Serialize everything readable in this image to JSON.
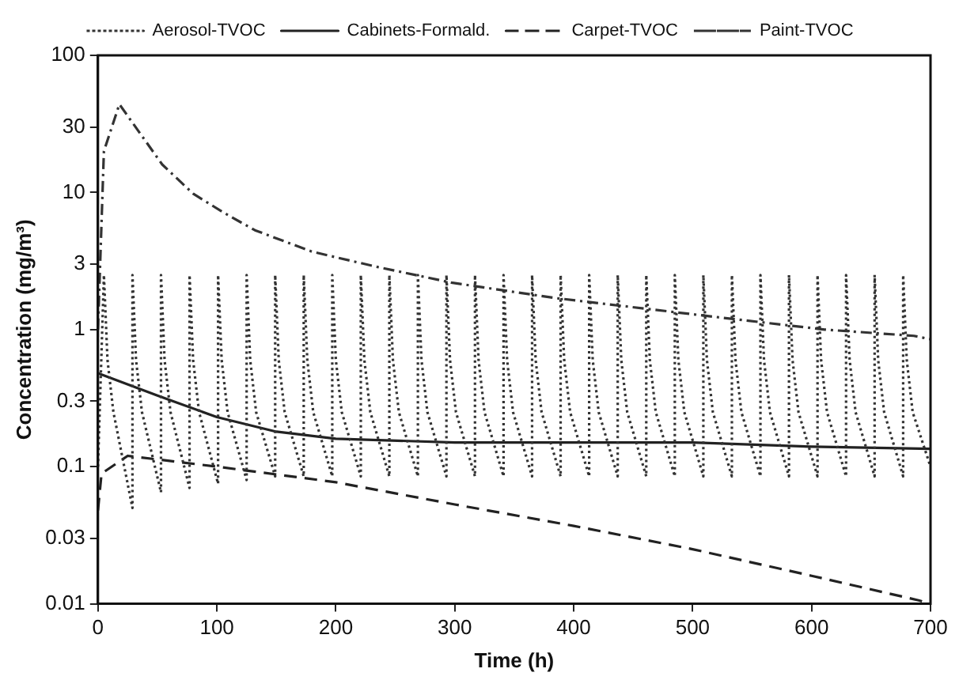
{
  "chart_data": {
    "type": "line",
    "xlabel": "Time (h)",
    "ylabel": "Concentration (mg/m³)",
    "log": "y",
    "xlim": [
      0,
      700
    ],
    "xticks": [
      0,
      100,
      200,
      300,
      400,
      500,
      600,
      700
    ],
    "ylim": [
      0.01,
      100
    ],
    "yticks": [
      0.01,
      0.03,
      0.1,
      0.3,
      1,
      3,
      10,
      30,
      100
    ],
    "grid": false,
    "legend": "top",
    "marker": "none",
    "series": [
      {
        "name": "Aerosol-TVOC",
        "color": "#333333",
        "line_style": "dotted",
        "x": [
          0,
          5,
          8,
          13,
          29,
          29,
          32,
          37,
          53,
          53,
          56,
          61,
          77,
          77,
          80,
          85,
          101,
          101,
          104,
          109,
          125,
          125,
          128,
          133,
          149,
          149,
          152,
          157,
          173,
          173,
          176,
          181,
          197,
          197,
          200,
          205,
          221,
          221,
          224,
          229,
          245,
          245,
          248,
          253,
          269,
          269,
          272,
          277,
          293,
          293,
          296,
          301,
          317,
          317,
          320,
          325,
          341,
          341,
          344,
          349,
          365,
          365,
          368,
          373,
          389,
          389,
          392,
          397,
          413,
          413,
          416,
          421,
          437,
          437,
          440,
          445,
          461,
          461,
          464,
          469,
          485,
          485,
          488,
          493,
          509,
          509,
          512,
          517,
          533,
          533,
          536,
          541,
          557,
          557,
          560,
          565,
          581,
          581,
          584,
          589,
          605,
          605,
          608,
          613,
          629,
          629,
          632,
          637,
          653,
          653,
          656,
          661,
          677,
          677,
          680,
          685,
          700
        ],
        "values": [
          0.1,
          2.5,
          0.6,
          0.25,
          0.05,
          2.5,
          0.6,
          0.25,
          0.065,
          2.5,
          0.6,
          0.25,
          0.07,
          2.5,
          0.6,
          0.25,
          0.075,
          2.5,
          0.6,
          0.25,
          0.08,
          2.5,
          0.6,
          0.25,
          0.085,
          2.5,
          0.6,
          0.25,
          0.085,
          2.5,
          0.6,
          0.25,
          0.085,
          2.5,
          0.6,
          0.25,
          0.085,
          2.5,
          0.6,
          0.25,
          0.085,
          2.5,
          0.6,
          0.25,
          0.085,
          2.5,
          0.6,
          0.25,
          0.085,
          2.5,
          0.6,
          0.25,
          0.085,
          2.5,
          0.6,
          0.25,
          0.085,
          2.5,
          0.6,
          0.25,
          0.085,
          2.5,
          0.6,
          0.25,
          0.085,
          2.5,
          0.6,
          0.25,
          0.085,
          2.5,
          0.6,
          0.25,
          0.085,
          2.5,
          0.6,
          0.25,
          0.085,
          2.5,
          0.6,
          0.25,
          0.085,
          2.5,
          0.6,
          0.25,
          0.085,
          2.5,
          0.6,
          0.25,
          0.085,
          2.5,
          0.6,
          0.25,
          0.085,
          2.5,
          0.6,
          0.25,
          0.085,
          2.5,
          0.6,
          0.25,
          0.085,
          2.5,
          0.6,
          0.25,
          0.085,
          2.5,
          0.6,
          0.25,
          0.085,
          2.5,
          0.6,
          0.25,
          0.085,
          2.5,
          0.6,
          0.25,
          0.1
        ]
      },
      {
        "name": "Cabinets-Formald.",
        "color": "#222222",
        "line_style": "solid",
        "x": [
          0,
          50,
          100,
          150,
          200,
          300,
          400,
          500,
          600,
          700
        ],
        "values": [
          0.48,
          0.33,
          0.23,
          0.18,
          0.16,
          0.15,
          0.15,
          0.15,
          0.14,
          0.135
        ]
      },
      {
        "name": "Carpet-TVOC",
        "color": "#222222",
        "line_style": "dashed",
        "x": [
          0,
          3,
          25,
          100,
          200,
          300,
          400,
          500,
          600,
          690,
          700
        ],
        "values": [
          0.048,
          0.089,
          0.12,
          0.1,
          0.077,
          0.053,
          0.037,
          0.025,
          0.016,
          0.0106,
          0.01
        ]
      },
      {
        "name": "Paint-TVOC",
        "color": "#333333",
        "line_style": "dashdot",
        "x": [
          0,
          5,
          18,
          54,
          80,
          106,
          132,
          180,
          232,
          297,
          384,
          511,
          611,
          686,
          700
        ],
        "values": [
          1,
          20,
          44,
          16,
          9.8,
          7.1,
          5.3,
          3.7,
          2.9,
          2.2,
          1.7,
          1.26,
          1,
          0.9,
          0.85
        ]
      }
    ]
  }
}
